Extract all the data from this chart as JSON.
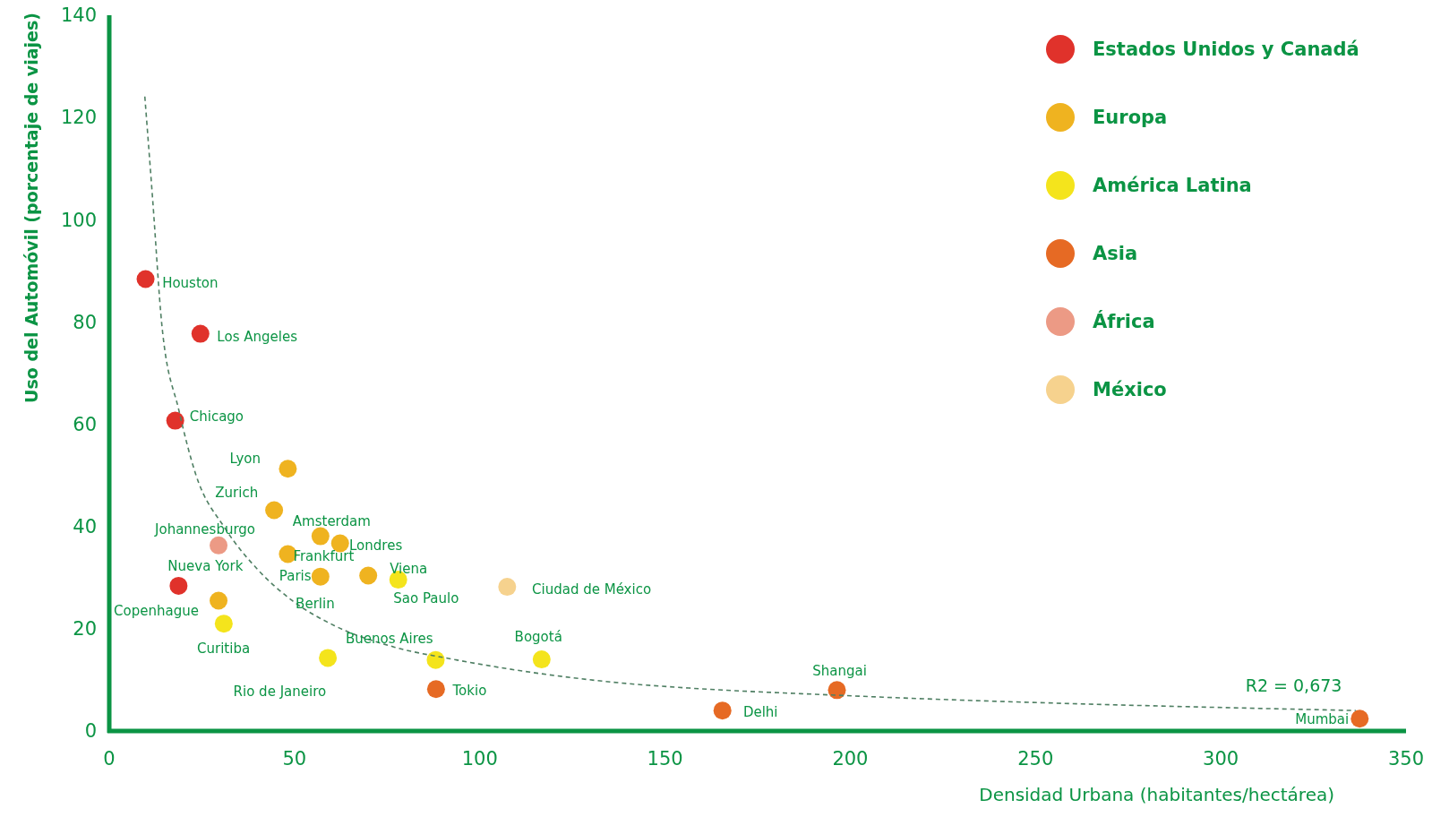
{
  "chart_data": {
    "type": "scatter",
    "xlabel": "Densidad Urbana (habitantes/hectárea)",
    "ylabel": "Uso del Automóvil (porcentaje de viajes)",
    "xlim": [
      0,
      350
    ],
    "xticks": [
      0,
      50,
      100,
      150,
      200,
      250,
      300,
      350
    ],
    "ylim": [
      0,
      140
    ],
    "yticks": [
      0,
      20,
      40,
      60,
      80,
      100,
      120,
      140
    ],
    "grid": false,
    "legend": "top right",
    "marker": "circle",
    "series": [
      {
        "name": "Estados Unidos y Canadá",
        "color": "#e0322b",
        "x": [
          9.8,
          24.6,
          17.8,
          18.7
        ],
        "values": [
          88.4,
          77.7,
          60.7,
          28.4
        ]
      },
      {
        "name": "Europa",
        "color": "#efb320",
        "x": [
          48.2,
          44.5,
          57.0,
          62.3,
          48.2,
          57.0,
          69.9,
          29.5
        ],
        "values": [
          51.3,
          43.2,
          38.1,
          36.7,
          34.6,
          30.2,
          30.4,
          25.5
        ]
      },
      {
        "name": "América Latina",
        "color": "#f4e41c",
        "x": [
          30.9,
          59.0,
          88.1,
          116.7,
          78.0
        ],
        "values": [
          21.0,
          14.3,
          13.9,
          14.0,
          29.6
        ]
      },
      {
        "name": "Asia",
        "color": "#e66a24",
        "x": [
          88.2,
          165.5,
          196.4,
          337.5
        ],
        "values": [
          8.2,
          4.0,
          8.0,
          2.4
        ]
      },
      {
        "name": "África",
        "color": "#ec9a85",
        "x": [
          29.5
        ],
        "values": [
          36.3
        ]
      },
      {
        "name": "México",
        "color": "#f6d28e",
        "x": [
          107.4
        ],
        "values": [
          28.2
        ]
      },
      {
        "type": "line",
        "color": "#4f7f63",
        "line_style": "dashed",
        "marker": "none",
        "x": [
          9.6,
          11.7,
          14.2,
          18.8,
          23.3,
          31.3,
          40.3,
          49.4,
          60.8,
          77.0,
          93.0,
          139.6,
          156.5,
          196.4,
          336.4
        ],
        "values": [
          124.1,
          104.1,
          79.4,
          62.7,
          50.3,
          39.6,
          31.4,
          25.5,
          20.6,
          16.4,
          14.0,
          9.3,
          8.4,
          7.0,
          4.0
        ]
      }
    ],
    "annotations": [
      {
        "text": "Houston",
        "x": 9.8,
        "y": 88.4
      },
      {
        "text": "Los Angeles",
        "x": 24.6,
        "y": 77.7
      },
      {
        "text": "Chicago",
        "x": 17.8,
        "y": 60.7
      },
      {
        "text": "Lyon",
        "x": 48.2,
        "y": 51.3
      },
      {
        "text": "Zurich",
        "x": 44.5,
        "y": 43.2
      },
      {
        "text": "Amsterdam",
        "x": 57.0,
        "y": 38.1
      },
      {
        "text": "Johannesburgo",
        "x": 29.5,
        "y": 36.3
      },
      {
        "text": "Londres",
        "x": 62.3,
        "y": 36.7
      },
      {
        "text": "Frankfurt",
        "x": 48.2,
        "y": 34.6
      },
      {
        "text": "Nueva York",
        "x": 18.7,
        "y": 28.4
      },
      {
        "text": "Paris",
        "x": 57.0,
        "y": 30.2
      },
      {
        "text": "Viena",
        "x": 69.9,
        "y": 30.4
      },
      {
        "text": "Sao Paulo",
        "x": 78.0,
        "y": 29.6
      },
      {
        "text": "Ciudad de México",
        "x": 107.4,
        "y": 28.2
      },
      {
        "text": "Berlin",
        "x": 57.0,
        "y": 30.2
      },
      {
        "text": "Copenhague",
        "x": 29.5,
        "y": 25.5
      },
      {
        "text": "Curitiba",
        "x": 30.9,
        "y": 21.0
      },
      {
        "text": "Buenos Aires",
        "x": 88.1,
        "y": 13.9
      },
      {
        "text": "Bogotá",
        "x": 116.7,
        "y": 14.0
      },
      {
        "text": "Shangai",
        "x": 196.4,
        "y": 8.0
      },
      {
        "text": "Rio de Janeiro",
        "x": 59.0,
        "y": 14.3
      },
      {
        "text": "Tokio",
        "x": 88.2,
        "y": 8.2
      },
      {
        "text": "Delhi",
        "x": 165.5,
        "y": 4.0
      },
      {
        "text": "Mumbai",
        "x": 337.5,
        "y": 2.4
      },
      {
        "text": "R2 = 0,673",
        "x": 336.4,
        "y": 4.0
      }
    ]
  }
}
